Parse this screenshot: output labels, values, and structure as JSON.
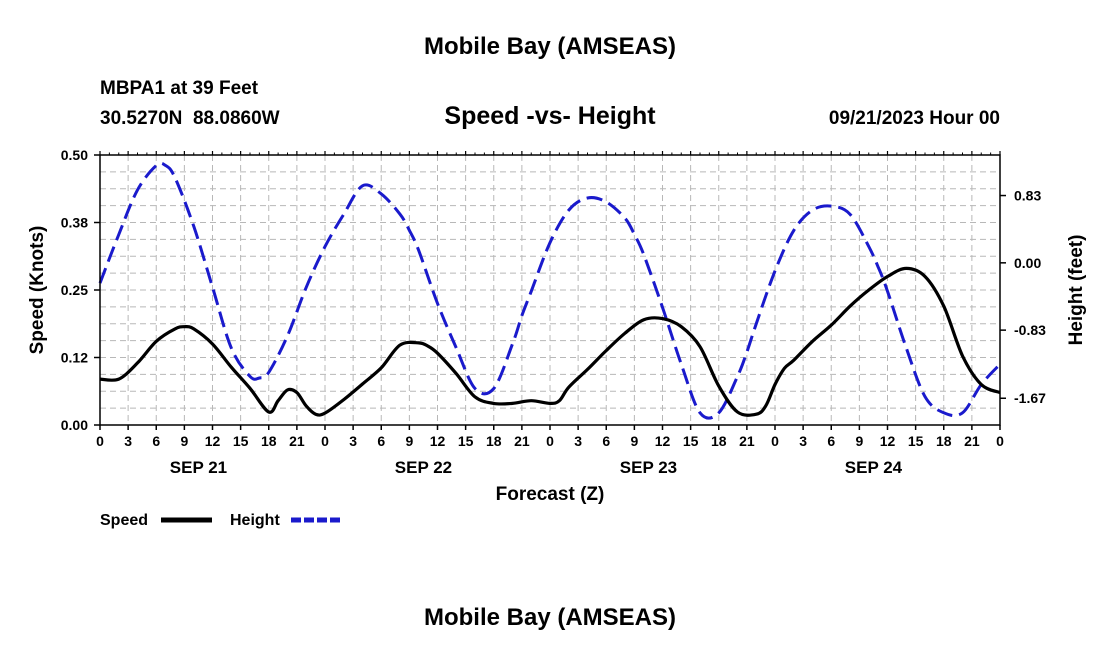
{
  "header": {
    "title": "Mobile Bay (AMSEAS)",
    "station": "MBPA1 at 39 Feet",
    "coordinates": "30.5270N  88.0860W",
    "datetime": "09/21/2023 Hour 00",
    "footer_title": "Mobile Bay (AMSEAS)"
  },
  "chart_data": {
    "type": "line",
    "title": "Speed -vs- Height",
    "xlabel": "Forecast (Z)",
    "ylabel": "Speed (Knots)",
    "y2label": "Height (feet)",
    "ylim": [
      0,
      0.5
    ],
    "y2lim": [
      -2.0,
      1.33
    ],
    "xlim": [
      0,
      96
    ],
    "grid": true,
    "legend_position": "bottom-left",
    "x_tick_labels": [
      "0",
      "3",
      "6",
      "9",
      "12",
      "15",
      "18",
      "21",
      "0",
      "3",
      "6",
      "9",
      "12",
      "15",
      "18",
      "21",
      "0",
      "3",
      "6",
      "9",
      "12",
      "15",
      "18",
      "21",
      "0",
      "3",
      "6",
      "9",
      "12",
      "15",
      "18",
      "21",
      "0"
    ],
    "date_labels": [
      {
        "label": "SEP 21",
        "at_hour": 10.5
      },
      {
        "label": "SEP 22",
        "at_hour": 34.5
      },
      {
        "label": "SEP 23",
        "at_hour": 58.5
      },
      {
        "label": "SEP 24",
        "at_hour": 82.5
      }
    ],
    "y_ticks": [
      {
        "value": 0.0,
        "label": "0.00"
      },
      {
        "value": 0.125,
        "label": "0.12"
      },
      {
        "value": 0.25,
        "label": "0.25"
      },
      {
        "value": 0.375,
        "label": "0.38"
      },
      {
        "value": 0.5,
        "label": "0.50"
      }
    ],
    "y2_ticks": [
      {
        "value": 0.83,
        "label": "0.83"
      },
      {
        "value": 0.0,
        "label": "0.00"
      },
      {
        "value": -0.83,
        "label": "-0.83"
      },
      {
        "value": -1.67,
        "label": "-1.67"
      }
    ],
    "series": [
      {
        "name": "Speed",
        "axis": "left",
        "color": "#000000",
        "style": "solid",
        "x": [
          0,
          2,
          4,
          6,
          8,
          9,
          10,
          12,
          14,
          16,
          18,
          19,
          20,
          21,
          22,
          23,
          24,
          26,
          28,
          30,
          32,
          34,
          35,
          36,
          38,
          40,
          42,
          44,
          46,
          48,
          49,
          50,
          52,
          54,
          56,
          58,
          60,
          62,
          64,
          66,
          68,
          70,
          71,
          72,
          73,
          74,
          76,
          78,
          80,
          82,
          84,
          86,
          88,
          90,
          92,
          94,
          96
        ],
        "y": [
          0.085,
          0.085,
          0.115,
          0.155,
          0.178,
          0.182,
          0.178,
          0.15,
          0.107,
          0.068,
          0.024,
          0.045,
          0.065,
          0.06,
          0.035,
          0.02,
          0.022,
          0.047,
          0.076,
          0.106,
          0.148,
          0.152,
          0.146,
          0.133,
          0.095,
          0.052,
          0.04,
          0.04,
          0.045,
          0.04,
          0.045,
          0.07,
          0.103,
          0.138,
          0.17,
          0.195,
          0.197,
          0.182,
          0.145,
          0.072,
          0.024,
          0.02,
          0.035,
          0.075,
          0.105,
          0.12,
          0.155,
          0.185,
          0.22,
          0.25,
          0.275,
          0.29,
          0.275,
          0.22,
          0.128,
          0.075,
          0.06
        ]
      },
      {
        "name": "Height",
        "axis": "right",
        "color": "#1a1acc",
        "style": "dashed",
        "x": [
          0,
          2,
          4,
          6,
          7,
          8,
          10,
          12,
          14,
          16,
          17,
          18,
          20,
          22,
          24,
          26,
          28,
          30,
          32,
          33,
          34,
          36,
          38,
          40,
          42,
          44,
          45,
          46,
          48,
          50,
          52,
          54,
          56,
          57,
          58,
          60,
          62,
          64,
          66,
          68,
          69,
          70,
          72,
          74,
          76,
          78,
          80,
          82,
          83,
          84,
          86,
          88,
          90,
          92,
          94,
          96
        ],
        "y": [
          -0.25,
          0.35,
          0.9,
          1.2,
          1.2,
          1.05,
          0.45,
          -0.3,
          -1.05,
          -1.4,
          -1.42,
          -1.35,
          -0.9,
          -0.3,
          0.2,
          0.6,
          0.95,
          0.85,
          0.6,
          0.4,
          0.15,
          -0.5,
          -1.05,
          -1.55,
          -1.55,
          -1.0,
          -0.65,
          -0.35,
          0.25,
          0.65,
          0.8,
          0.75,
          0.55,
          0.35,
          0.1,
          -0.55,
          -1.25,
          -1.85,
          -1.85,
          -1.4,
          -1.1,
          -0.75,
          -0.1,
          0.4,
          0.65,
          0.7,
          0.6,
          0.2,
          -0.05,
          -0.35,
          -1.05,
          -1.65,
          -1.85,
          -1.85,
          -1.5,
          -1.25
        ]
      }
    ]
  }
}
